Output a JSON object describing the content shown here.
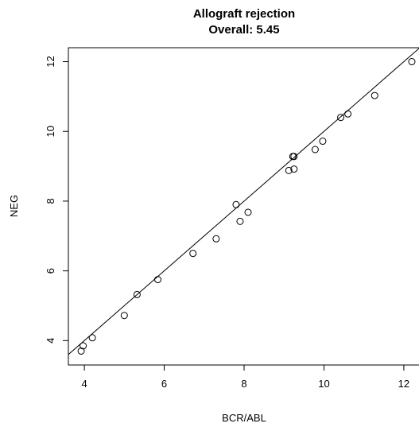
{
  "chart_data": {
    "type": "scatter",
    "title": "Allograft rejection",
    "subtitle": "Overall: 5.45",
    "xlabel": "BCR/ABL",
    "ylabel": "NEG",
    "xlim": [
      3.6,
      12.4
    ],
    "ylim": [
      3.3,
      12.4
    ],
    "xticks": [
      4,
      6,
      8,
      10,
      12
    ],
    "yticks": [
      4,
      6,
      8,
      10,
      12
    ],
    "grid": false,
    "reference_line": {
      "x": [
        3.5,
        12.5
      ],
      "y": [
        3.5,
        12.5
      ]
    },
    "series": [
      {
        "x": [
          3.92,
          3.97,
          4.2,
          5.0,
          5.32,
          5.84,
          6.72,
          7.3,
          7.8,
          7.9,
          8.1,
          9.12,
          9.22,
          9.25,
          9.25,
          9.78,
          9.97,
          10.42,
          10.6,
          11.27,
          12.2
        ],
        "y": [
          3.7,
          3.85,
          4.08,
          4.72,
          5.32,
          5.75,
          6.5,
          6.92,
          7.9,
          7.42,
          7.68,
          8.88,
          9.28,
          8.92,
          9.28,
          9.48,
          9.72,
          10.4,
          10.5,
          11.03,
          12.0
        ]
      }
    ]
  }
}
